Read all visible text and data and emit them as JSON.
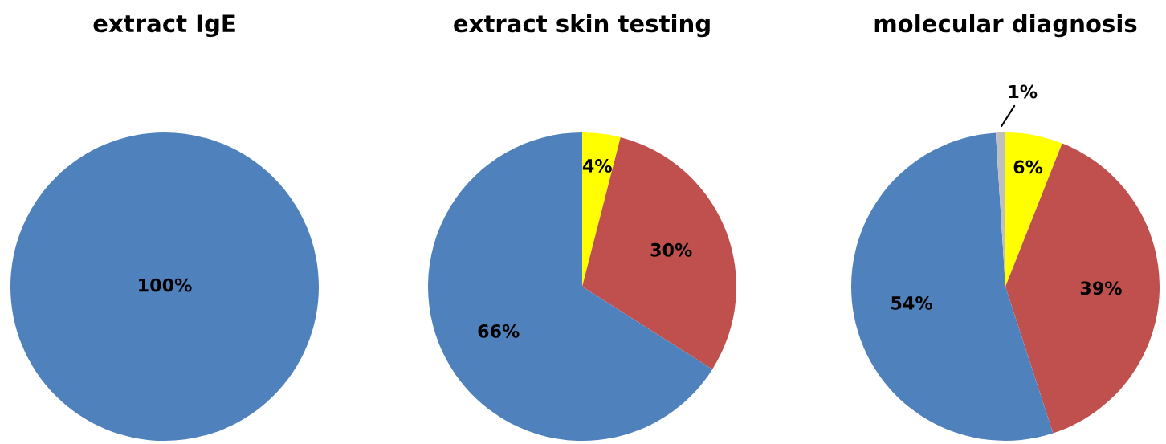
{
  "chart_data": [
    {
      "type": "pie",
      "title": "extract IgE",
      "categories": [
        null
      ],
      "values": [
        100
      ],
      "colors": [
        "#4f81bd"
      ],
      "value_labels": [
        "100%"
      ]
    },
    {
      "type": "pie",
      "title": "extract skin testing",
      "categories": [
        null,
        null,
        null
      ],
      "values": [
        4,
        30,
        66
      ],
      "colors": [
        "#ffff00",
        "#c0504d",
        "#4f81bd"
      ],
      "value_labels": [
        "4%",
        "30%",
        "66%"
      ]
    },
    {
      "type": "pie",
      "title": "molecular diagnosis",
      "categories": [
        null,
        null,
        null,
        null
      ],
      "values": [
        6,
        39,
        54,
        1
      ],
      "colors": [
        "#ffff00",
        "#c0504d",
        "#4f81bd",
        "#bfbfbf"
      ],
      "value_labels": [
        "6%",
        "39%",
        "54%",
        "1%"
      ]
    }
  ]
}
